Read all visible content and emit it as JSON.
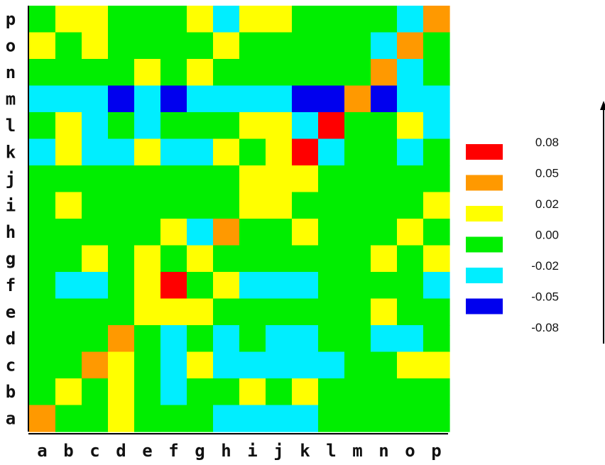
{
  "chart_data": {
    "type": "heatmap",
    "x_labels": [
      "a",
      "b",
      "c",
      "d",
      "e",
      "f",
      "g",
      "h",
      "i",
      "j",
      "k",
      "l",
      "m",
      "n",
      "o",
      "p"
    ],
    "y_labels": [
      "a",
      "b",
      "c",
      "d",
      "e",
      "f",
      "g",
      "h",
      "i",
      "j",
      "k",
      "l",
      "m",
      "n",
      "o",
      "p"
    ],
    "palette": [
      {
        "label": "0.08",
        "value": 0.08,
        "color": "#ff0000"
      },
      {
        "label": "0.05",
        "value": 0.05,
        "color": "#ff9900"
      },
      {
        "label": "0.02",
        "value": 0.02,
        "color": "#ffff00"
      },
      {
        "label": "0.00",
        "value": 0.0,
        "color": "#00ee00"
      },
      {
        "label": "-0.02",
        "value": -0.02,
        "color": "#00eeff"
      },
      {
        "label": "-0.05",
        "value": -0.05,
        "color": "#0000ee"
      },
      {
        "label": "-0.08",
        "value": -0.08,
        "color": null
      }
    ],
    "rows": [
      {
        "y": "p",
        "values": [
          0,
          0.02,
          0.02,
          0,
          0,
          0,
          0.02,
          -0.02,
          0.02,
          0.02,
          0,
          0,
          0,
          0,
          -0.02,
          0.05
        ]
      },
      {
        "y": "o",
        "values": [
          0.02,
          0,
          0.02,
          0,
          0,
          0,
          0,
          0.02,
          0,
          0,
          0,
          0,
          0,
          -0.02,
          0.05,
          0
        ]
      },
      {
        "y": "n",
        "values": [
          0,
          0,
          0,
          0,
          0.02,
          0,
          0.02,
          0,
          0,
          0,
          0,
          0,
          0,
          0.05,
          -0.02,
          0
        ]
      },
      {
        "y": "m",
        "values": [
          -0.02,
          -0.02,
          -0.02,
          -0.05,
          -0.02,
          -0.05,
          -0.02,
          -0.02,
          -0.02,
          -0.02,
          -0.05,
          -0.05,
          0.05,
          -0.05,
          -0.02,
          -0.02
        ]
      },
      {
        "y": "l",
        "values": [
          0,
          0.02,
          -0.02,
          0,
          -0.02,
          0,
          0,
          0,
          0.02,
          0.02,
          -0.02,
          0.08,
          0,
          0,
          0.02,
          -0.02
        ]
      },
      {
        "y": "k",
        "values": [
          -0.02,
          0.02,
          -0.02,
          -0.02,
          0.02,
          -0.02,
          -0.02,
          0.02,
          0,
          0.02,
          0.08,
          -0.02,
          0,
          0,
          -0.02,
          0
        ]
      },
      {
        "y": "j",
        "values": [
          0,
          0,
          0,
          0,
          0,
          0,
          0,
          0,
          0.02,
          0.02,
          0.02,
          0,
          0,
          0,
          0,
          0
        ]
      },
      {
        "y": "i",
        "values": [
          0,
          0.02,
          0,
          0,
          0,
          0,
          0,
          0,
          0.02,
          0.02,
          0,
          0,
          0,
          0,
          0,
          0.02
        ]
      },
      {
        "y": "h",
        "values": [
          0,
          0,
          0,
          0,
          0,
          0.02,
          -0.02,
          0.05,
          0,
          0,
          0.02,
          0,
          0,
          0,
          0.02,
          0
        ]
      },
      {
        "y": "g",
        "values": [
          0,
          0,
          0.02,
          0,
          0.02,
          0,
          0.02,
          0,
          0,
          0,
          0,
          0,
          0,
          0.02,
          0,
          0.02
        ]
      },
      {
        "y": "f",
        "values": [
          0,
          -0.02,
          -0.02,
          0,
          0.02,
          0.08,
          0,
          0.02,
          -0.02,
          -0.02,
          -0.02,
          0,
          0,
          0,
          0,
          -0.02
        ]
      },
      {
        "y": "e",
        "values": [
          0,
          0,
          0,
          0,
          0.02,
          0.02,
          0.02,
          0,
          0,
          0,
          0,
          0,
          0,
          0.02,
          0,
          0
        ]
      },
      {
        "y": "d",
        "values": [
          0,
          0,
          0,
          0.05,
          0,
          -0.02,
          0,
          -0.02,
          0,
          -0.02,
          -0.02,
          0,
          0,
          -0.02,
          -0.02,
          0
        ]
      },
      {
        "y": "c",
        "values": [
          0,
          0,
          0.05,
          0.02,
          0,
          -0.02,
          0.02,
          -0.02,
          -0.02,
          -0.02,
          -0.02,
          -0.02,
          0,
          0,
          0.02,
          0.02
        ]
      },
      {
        "y": "b",
        "values": [
          0,
          0.02,
          0,
          0.02,
          0,
          -0.02,
          0,
          0,
          0.02,
          0,
          0.02,
          0,
          0,
          0,
          0,
          0
        ]
      },
      {
        "y": "a",
        "values": [
          0.05,
          0,
          0,
          0.02,
          0,
          0,
          0,
          -0.02,
          -0.02,
          -0.02,
          -0.02,
          0,
          0,
          0,
          0,
          0
        ]
      }
    ]
  }
}
